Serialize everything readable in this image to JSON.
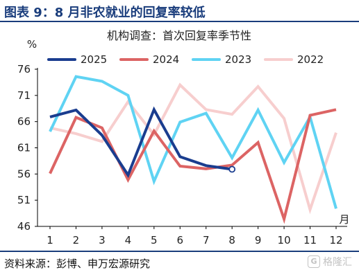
{
  "figure": {
    "title": "图表 9：8 月非农就业的回复率较低",
    "source": "资料来源：彭博、申万宏源研究",
    "watermark": "格隆汇"
  },
  "chart_data": {
    "type": "line",
    "title": "机构调查：首次回复率季节性",
    "ylabel": "%",
    "xlabel": "月",
    "x": [
      1,
      2,
      3,
      4,
      5,
      6,
      7,
      8,
      9,
      10,
      11,
      12
    ],
    "x_tick_labels": [
      "1",
      "2",
      "3",
      "4",
      "5",
      "6",
      "7",
      "8",
      "9",
      "10",
      "11",
      "12"
    ],
    "ylim": [
      46,
      76
    ],
    "y_ticks": [
      46,
      51,
      56,
      61,
      66,
      71,
      76
    ],
    "grid": false,
    "legend": "top",
    "series": [
      {
        "name": "2025",
        "color": "#1a3d8f",
        "values": [
          66.9,
          68.2,
          63.4,
          55.8,
          68.3,
          59.3,
          57.6,
          56.9,
          null,
          null,
          null,
          null
        ],
        "end_marker": true
      },
      {
        "name": "2024",
        "color": "#dc6464",
        "values": [
          56.1,
          66.8,
          64.8,
          54.9,
          64.2,
          57.5,
          57.0,
          57.7,
          62.0,
          47.4,
          67.2,
          68.3
        ]
      },
      {
        "name": "2023",
        "color": "#5fd3f3",
        "values": [
          64.1,
          74.6,
          73.7,
          71.0,
          54.6,
          65.9,
          67.6,
          59.1,
          68.2,
          58.2,
          66.9,
          49.4
        ]
      },
      {
        "name": "2022",
        "color": "#f7cece",
        "values": [
          64.8,
          63.7,
          62.2,
          69.8,
          63.5,
          73.0,
          68.3,
          67.4,
          72.7,
          66.6,
          49.2,
          63.9
        ]
      }
    ]
  }
}
